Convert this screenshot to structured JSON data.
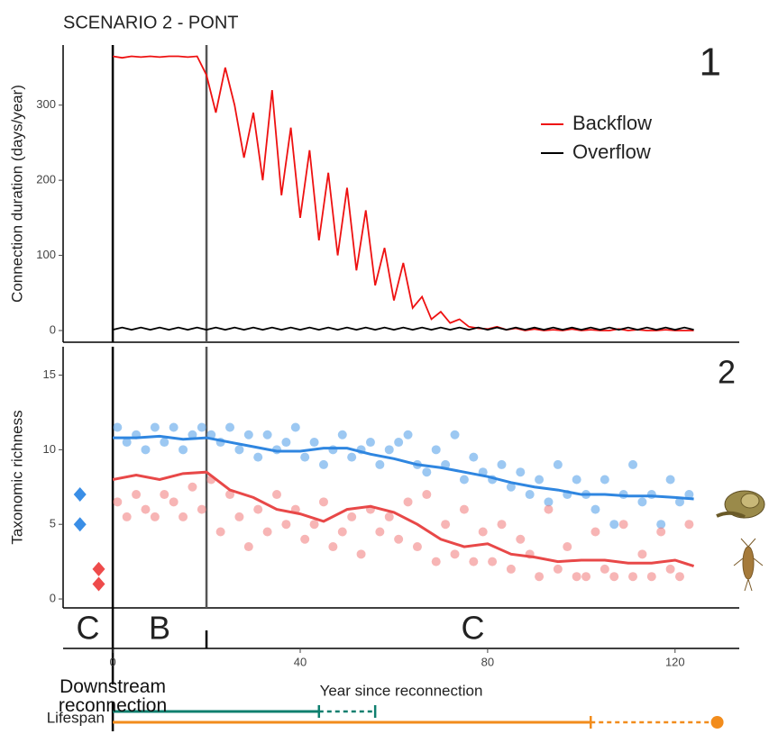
{
  "chart_data": [
    {
      "type": "line",
      "title": "SCENARIO 2 - PONT",
      "panel_label": "1",
      "ylabel": "Connection duration (days/year)",
      "ylim": [
        -15.6,
        380
      ],
      "yticks": [
        0,
        100,
        200,
        300
      ],
      "xlim": [
        -10.6,
        133.7
      ],
      "legend": "upper right",
      "x": [
        0,
        2,
        4,
        6,
        8,
        10,
        12,
        14,
        16,
        18,
        20,
        22,
        24,
        26,
        28,
        30,
        32,
        34,
        36,
        38,
        40,
        42,
        44,
        46,
        48,
        50,
        52,
        54,
        56,
        58,
        60,
        62,
        64,
        66,
        68,
        70,
        72,
        74,
        76,
        78,
        80,
        82,
        84,
        86,
        88,
        90,
        92,
        94,
        96,
        98,
        100,
        102,
        104,
        106,
        108,
        110,
        112,
        114,
        116,
        118,
        120,
        122,
        124
      ],
      "series": [
        {
          "name": "Backflow",
          "color": "#ee1111",
          "values": [
            365,
            363,
            365,
            364,
            365,
            364,
            365,
            365,
            364,
            365,
            340,
            290,
            350,
            300,
            230,
            290,
            200,
            320,
            180,
            270,
            150,
            240,
            120,
            210,
            100,
            190,
            80,
            160,
            60,
            110,
            40,
            90,
            30,
            45,
            15,
            25,
            10,
            15,
            5,
            3,
            2,
            5,
            1,
            3,
            0,
            2,
            0,
            1,
            0,
            2,
            0,
            1,
            0,
            0,
            2,
            0,
            1,
            0,
            0,
            1,
            0,
            0,
            0
          ]
        },
        {
          "name": "Overflow",
          "color": "#000000",
          "values": [
            1,
            4,
            1,
            4,
            1,
            4,
            1,
            4,
            1,
            4,
            1,
            4,
            1,
            4,
            1,
            4,
            1,
            4,
            1,
            4,
            1,
            4,
            1,
            4,
            1,
            4,
            1,
            4,
            1,
            4,
            1,
            4,
            1,
            4,
            1,
            4,
            1,
            4,
            1,
            4,
            1,
            4,
            1,
            4,
            1,
            4,
            1,
            4,
            1,
            4,
            1,
            4,
            1,
            4,
            1,
            4,
            1,
            4,
            1,
            4,
            1,
            4,
            1
          ]
        }
      ],
      "boundaries": [
        0,
        20
      ]
    },
    {
      "type": "scatter",
      "panel_label": "2",
      "ylabel": "Taxonomic richness",
      "ylim": [
        -0.6,
        16.9
      ],
      "yticks": [
        0,
        5,
        10,
        15
      ],
      "xlim": [
        -10.6,
        133.7
      ],
      "xticks": [
        0,
        40,
        80,
        120
      ],
      "xlabel": "Year since reconnection",
      "boundaries": [
        0,
        20
      ],
      "phases": [
        "C",
        "B",
        "C"
      ],
      "series": [
        {
          "mode": "markers",
          "marker": "circle",
          "color": "#4a9be8",
          "x": [
            1,
            3,
            5,
            7,
            9,
            11,
            13,
            15,
            17,
            19,
            21,
            23,
            25,
            27,
            29,
            31,
            33,
            35,
            37,
            39,
            41,
            43,
            45,
            47,
            49,
            51,
            53,
            55,
            57,
            59,
            61,
            63,
            65,
            67,
            69,
            71,
            73,
            75,
            77,
            79,
            81,
            83,
            85,
            87,
            89,
            91,
            93,
            95,
            97,
            99,
            101,
            103,
            105,
            107,
            109,
            111,
            113,
            115,
            117,
            119,
            121,
            123
          ],
          "values": [
            11.5,
            10.5,
            11,
            10,
            11.5,
            10.5,
            11.5,
            10,
            11,
            11.5,
            11,
            10.5,
            11.5,
            10,
            11,
            9.5,
            11,
            10,
            10.5,
            11.5,
            9.5,
            10.5,
            9,
            10,
            11,
            9.5,
            10,
            10.5,
            9,
            10,
            10.5,
            11,
            9,
            8.5,
            10,
            9,
            11,
            8,
            9.5,
            8.5,
            8,
            9,
            7.5,
            8.5,
            7,
            8,
            6.5,
            9,
            7,
            8,
            7,
            6,
            8,
            5,
            7,
            9,
            6.5,
            7,
            5,
            8,
            6.5,
            7
          ]
        },
        {
          "mode": "markers",
          "marker": "circle",
          "color": "#f07878",
          "x": [
            1,
            3,
            5,
            7,
            9,
            11,
            13,
            15,
            17,
            19,
            21,
            23,
            25,
            27,
            29,
            31,
            33,
            35,
            37,
            39,
            41,
            43,
            45,
            47,
            49,
            51,
            53,
            55,
            57,
            59,
            61,
            63,
            65,
            67,
            69,
            71,
            73,
            75,
            77,
            79,
            81,
            83,
            85,
            87,
            89,
            91,
            93,
            95,
            97,
            99,
            101,
            103,
            105,
            107,
            109,
            111,
            113,
            115,
            117,
            119,
            121,
            123
          ],
          "values": [
            6.5,
            5.5,
            7,
            6,
            5.5,
            7,
            6.5,
            5.5,
            7.5,
            6,
            8,
            4.5,
            7,
            5.5,
            3.5,
            6,
            4.5,
            7,
            5,
            6,
            4,
            5,
            6.5,
            3.5,
            4.5,
            5.5,
            3,
            6,
            4.5,
            5.5,
            4,
            6.5,
            3.5,
            7,
            2.5,
            5,
            3,
            6,
            2.5,
            4.5,
            2.5,
            5,
            2,
            4,
            3,
            1.5,
            6,
            2,
            3.5,
            1.5,
            1.5,
            4.5,
            2,
            1.5,
            5,
            1.5,
            3,
            1.5,
            4.5,
            2,
            1.5,
            5
          ]
        },
        {
          "mode": "line",
          "color": "#2f86e0",
          "x": [
            0,
            5,
            10,
            15,
            20,
            25,
            30,
            35,
            40,
            45,
            50,
            55,
            60,
            65,
            70,
            75,
            80,
            85,
            90,
            95,
            100,
            105,
            110,
            115,
            120,
            124
          ],
          "values": [
            10.8,
            10.8,
            10.9,
            10.7,
            10.8,
            10.5,
            10.2,
            9.9,
            9.9,
            10.1,
            10.1,
            9.7,
            9.4,
            9.0,
            8.8,
            8.5,
            8.2,
            7.8,
            7.5,
            7.3,
            7.0,
            7.0,
            6.9,
            6.9,
            6.8,
            6.7
          ]
        },
        {
          "mode": "line",
          "color": "#e84848",
          "x": [
            0,
            5,
            10,
            15,
            20,
            25,
            30,
            35,
            40,
            45,
            50,
            55,
            60,
            65,
            70,
            75,
            80,
            85,
            90,
            95,
            100,
            105,
            110,
            115,
            120,
            124
          ],
          "values": [
            8.0,
            8.3,
            8.0,
            8.4,
            8.5,
            7.3,
            6.8,
            6.0,
            5.7,
            5.2,
            6.0,
            6.2,
            5.8,
            5.0,
            4.0,
            3.5,
            3.7,
            3.0,
            2.8,
            2.5,
            2.6,
            2.6,
            2.4,
            2.4,
            2.6,
            2.2
          ]
        },
        {
          "mode": "markers",
          "marker": "diamond",
          "color": "#3a8ee6",
          "x": [
            -7,
            -7
          ],
          "values": [
            7,
            5
          ]
        },
        {
          "mode": "markers",
          "marker": "diamond",
          "color": "#ee4b4b",
          "x": [
            -3,
            -3
          ],
          "values": [
            2,
            1
          ]
        }
      ]
    },
    {
      "type": "range",
      "label": "Lifespan",
      "reconnection_label": "Downstream reconnection",
      "xlim": [
        -10.6,
        133.7
      ],
      "series": [
        {
          "color": "#0f7f6f",
          "start": 0,
          "end": 44,
          "dashed_end": 56,
          "end_marker": "tick"
        },
        {
          "color": "#f28c1c",
          "start": 0,
          "end": 102,
          "dashed_end": 129,
          "end_marker": "dot"
        }
      ]
    }
  ]
}
